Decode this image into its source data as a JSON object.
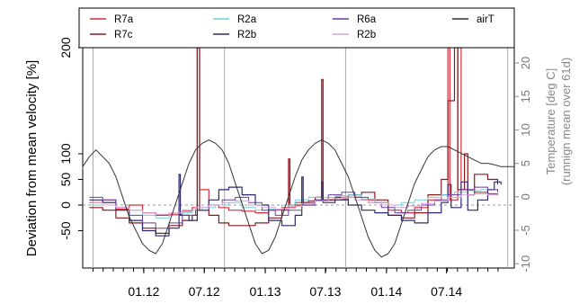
{
  "chart_data": {
    "type": "line",
    "ylabel": "Deviation from mean velocity [%]",
    "ylabel_right_lines": [
      "Temperature [deg C]",
      "(runnign mean over 61d)"
    ],
    "ylim": [
      -85,
      200
    ],
    "yticks": [
      -50,
      0,
      50,
      100,
      200
    ],
    "ylim_right": [
      -16,
      22
    ],
    "yticks_right": [
      -10,
      -5,
      0,
      5,
      10,
      15,
      20
    ],
    "xlim": [
      0,
      1300
    ],
    "xticks": [
      {
        "label": "01.12",
        "x": 184
      },
      {
        "label": "07.12",
        "x": 366
      },
      {
        "label": "01.13",
        "x": 550
      },
      {
        "label": "07.13",
        "x": 731
      },
      {
        "label": "01.14",
        "x": 915
      },
      {
        "label": "07.14",
        "x": 1096
      }
    ],
    "vlines": [
      31,
      427,
      792,
      1280
    ],
    "grid": false,
    "legend_placement": "top",
    "legend": [
      {
        "label": "R7a",
        "color": "#d62f3a"
      },
      {
        "label": "R2a",
        "color": "#6fd3dc"
      },
      {
        "label": "R6a",
        "color": "#6a3fa0"
      },
      {
        "label": "airT",
        "color": "#333333"
      },
      {
        "label": "R7c",
        "color": "#8b1a1f"
      },
      {
        "label": "R2b",
        "color": "#2b2a6e"
      },
      {
        "label": "R2b",
        "color": "#d9a0d8"
      }
    ],
    "series": [
      {
        "name": "R7a",
        "color": "#d62f3a",
        "axis": "left",
        "width": 1.2,
        "points": [
          [
            20,
            5
          ],
          [
            60,
            10
          ],
          [
            100,
            -8
          ],
          [
            140,
            0
          ],
          [
            180,
            -15
          ],
          [
            220,
            -20
          ],
          [
            260,
            -18
          ],
          [
            300,
            -12
          ],
          [
            330,
            -5
          ],
          [
            345,
            200
          ],
          [
            352,
            30
          ],
          [
            380,
            0
          ],
          [
            410,
            -5
          ],
          [
            440,
            -10
          ],
          [
            480,
            -12
          ],
          [
            520,
            -15
          ],
          [
            560,
            -10
          ],
          [
            600,
            -5
          ],
          [
            640,
            5
          ],
          [
            680,
            8
          ],
          [
            720,
            10
          ],
          [
            760,
            12
          ],
          [
            800,
            15
          ],
          [
            840,
            10
          ],
          [
            880,
            5
          ],
          [
            920,
            -10
          ],
          [
            960,
            -15
          ],
          [
            1000,
            -5
          ],
          [
            1040,
            10
          ],
          [
            1080,
            20
          ],
          [
            1100,
            200
          ],
          [
            1106,
            10
          ],
          [
            1130,
            200
          ],
          [
            1140,
            30
          ],
          [
            1180,
            25
          ],
          [
            1220,
            22
          ],
          [
            1250,
            20
          ]
        ]
      },
      {
        "name": "R7c",
        "color": "#8b1a1f",
        "axis": "left",
        "width": 1.2,
        "points": [
          [
            20,
            -5
          ],
          [
            60,
            -10
          ],
          [
            100,
            -25
          ],
          [
            140,
            -35
          ],
          [
            180,
            -45
          ],
          [
            220,
            -55
          ],
          [
            260,
            -40
          ],
          [
            300,
            -30
          ],
          [
            330,
            -20
          ],
          [
            345,
            200
          ],
          [
            352,
            -10
          ],
          [
            380,
            -20
          ],
          [
            410,
            -35
          ],
          [
            440,
            -40
          ],
          [
            480,
            -40
          ],
          [
            520,
            -35
          ],
          [
            560,
            -25
          ],
          [
            600,
            -10
          ],
          [
            620,
            90
          ],
          [
            624,
            0
          ],
          [
            660,
            5
          ],
          [
            700,
            15
          ],
          [
            720,
            170
          ],
          [
            724,
            10
          ],
          [
            760,
            15
          ],
          [
            800,
            20
          ],
          [
            840,
            25
          ],
          [
            880,
            10
          ],
          [
            920,
            -20
          ],
          [
            960,
            -25
          ],
          [
            1000,
            -15
          ],
          [
            1040,
            20
          ],
          [
            1080,
            50
          ],
          [
            1100,
            150
          ],
          [
            1120,
            200
          ],
          [
            1130,
            30
          ],
          [
            1150,
            100
          ],
          [
            1160,
            20
          ],
          [
            1180,
            60
          ],
          [
            1220,
            50
          ],
          [
            1250,
            40
          ]
        ]
      },
      {
        "name": "R2a",
        "color": "#6fd3dc",
        "axis": "left",
        "width": 1.0,
        "points": [
          [
            20,
            0
          ],
          [
            60,
            5
          ],
          [
            100,
            -5
          ],
          [
            140,
            -10
          ],
          [
            180,
            -20
          ],
          [
            220,
            -25
          ],
          [
            260,
            -20
          ],
          [
            300,
            -15
          ],
          [
            330,
            -10
          ],
          [
            360,
            -5
          ],
          [
            400,
            0
          ],
          [
            440,
            5
          ],
          [
            480,
            -5
          ],
          [
            520,
            -10
          ],
          [
            560,
            -8
          ],
          [
            600,
            0
          ],
          [
            640,
            10
          ],
          [
            680,
            15
          ],
          [
            720,
            15
          ],
          [
            760,
            18
          ],
          [
            800,
            20
          ],
          [
            840,
            12
          ],
          [
            880,
            5
          ],
          [
            920,
            0
          ],
          [
            960,
            5
          ],
          [
            1000,
            10
          ],
          [
            1040,
            15
          ],
          [
            1080,
            20
          ],
          [
            1120,
            25
          ],
          [
            1160,
            28
          ],
          [
            1200,
            30
          ],
          [
            1250,
            25
          ]
        ]
      },
      {
        "name": "R2b",
        "color": "#2b2a6e",
        "axis": "left",
        "width": 1.2,
        "points": [
          [
            20,
            10
          ],
          [
            60,
            5
          ],
          [
            100,
            -10
          ],
          [
            140,
            -30
          ],
          [
            180,
            -50
          ],
          [
            220,
            -60
          ],
          [
            260,
            -45
          ],
          [
            290,
            60
          ],
          [
            294,
            -20
          ],
          [
            320,
            -30
          ],
          [
            345,
            -10
          ],
          [
            380,
            10
          ],
          [
            410,
            30
          ],
          [
            440,
            35
          ],
          [
            480,
            20
          ],
          [
            520,
            0
          ],
          [
            560,
            -30
          ],
          [
            600,
            -40
          ],
          [
            640,
            -20
          ],
          [
            660,
            55
          ],
          [
            664,
            0
          ],
          [
            700,
            10
          ],
          [
            720,
            45
          ],
          [
            724,
            5
          ],
          [
            760,
            10
          ],
          [
            800,
            0
          ],
          [
            840,
            -10
          ],
          [
            880,
            -15
          ],
          [
            920,
            -20
          ],
          [
            960,
            -30
          ],
          [
            1000,
            -35
          ],
          [
            1040,
            -15
          ],
          [
            1080,
            5
          ],
          [
            1100,
            40
          ],
          [
            1110,
            -5
          ],
          [
            1140,
            45
          ],
          [
            1160,
            -10
          ],
          [
            1190,
            10
          ],
          [
            1220,
            30
          ],
          [
            1240,
            45
          ],
          [
            1260,
            40
          ]
        ]
      },
      {
        "name": "R6a",
        "color": "#6a3fa0",
        "axis": "left",
        "width": 1.0,
        "points": [
          [
            20,
            15
          ],
          [
            60,
            10
          ],
          [
            100,
            -5
          ],
          [
            140,
            -20
          ],
          [
            180,
            -35
          ],
          [
            220,
            -45
          ],
          [
            260,
            -35
          ],
          [
            300,
            -20
          ],
          [
            340,
            -10
          ],
          [
            380,
            0
          ],
          [
            420,
            10
          ],
          [
            460,
            15
          ],
          [
            500,
            5
          ],
          [
            540,
            -10
          ],
          [
            580,
            -20
          ],
          [
            620,
            -10
          ],
          [
            660,
            0
          ],
          [
            700,
            10
          ],
          [
            740,
            20
          ],
          [
            780,
            25
          ],
          [
            820,
            15
          ],
          [
            860,
            5
          ],
          [
            900,
            -5
          ],
          [
            940,
            -15
          ],
          [
            980,
            -10
          ],
          [
            1020,
            0
          ],
          [
            1060,
            10
          ],
          [
            1100,
            20
          ],
          [
            1140,
            30
          ],
          [
            1180,
            35
          ],
          [
            1220,
            30
          ],
          [
            1250,
            25
          ]
        ]
      },
      {
        "name": "R2b",
        "color": "#d9a0d8",
        "axis": "left",
        "width": 1.0,
        "points": [
          [
            20,
            5
          ],
          [
            60,
            0
          ],
          [
            100,
            -5
          ],
          [
            140,
            -10
          ],
          [
            180,
            -15
          ],
          [
            220,
            -18
          ],
          [
            260,
            -15
          ],
          [
            300,
            -10
          ],
          [
            340,
            -5
          ],
          [
            380,
            0
          ],
          [
            420,
            5
          ],
          [
            460,
            8
          ],
          [
            500,
            0
          ],
          [
            540,
            -5
          ],
          [
            580,
            -8
          ],
          [
            620,
            -3
          ],
          [
            660,
            3
          ],
          [
            700,
            8
          ],
          [
            740,
            12
          ],
          [
            780,
            15
          ],
          [
            820,
            10
          ],
          [
            860,
            5
          ],
          [
            900,
            0
          ],
          [
            940,
            -5
          ],
          [
            980,
            -2
          ],
          [
            1020,
            3
          ],
          [
            1060,
            8
          ],
          [
            1100,
            15
          ],
          [
            1140,
            20
          ],
          [
            1180,
            22
          ],
          [
            1220,
            20
          ],
          [
            1250,
            18
          ]
        ]
      },
      {
        "name": "airT",
        "color": "#333333",
        "axis": "right",
        "width": 1.0,
        "points": [
          [
            -10,
            4
          ],
          [
            0,
            4.5
          ],
          [
            20,
            6
          ],
          [
            40,
            7
          ],
          [
            60,
            6
          ],
          [
            80,
            5
          ],
          [
            100,
            3
          ],
          [
            120,
            0
          ],
          [
            140,
            -3
          ],
          [
            160,
            -5
          ],
          [
            180,
            -7
          ],
          [
            200,
            -8
          ],
          [
            220,
            -8.5
          ],
          [
            240,
            -7
          ],
          [
            260,
            -4
          ],
          [
            280,
            -1
          ],
          [
            300,
            2
          ],
          [
            320,
            5
          ],
          [
            340,
            7
          ],
          [
            360,
            8
          ],
          [
            380,
            8.5
          ],
          [
            400,
            8
          ],
          [
            420,
            7
          ],
          [
            440,
            5
          ],
          [
            460,
            2
          ],
          [
            480,
            -1
          ],
          [
            500,
            -4
          ],
          [
            520,
            -7
          ],
          [
            540,
            -8.5
          ],
          [
            560,
            -8
          ],
          [
            580,
            -6
          ],
          [
            600,
            -3
          ],
          [
            620,
            0
          ],
          [
            640,
            3
          ],
          [
            660,
            5.5
          ],
          [
            680,
            7
          ],
          [
            700,
            8
          ],
          [
            720,
            8.5
          ],
          [
            740,
            8
          ],
          [
            760,
            7
          ],
          [
            780,
            5
          ],
          [
            800,
            3
          ],
          [
            820,
            0
          ],
          [
            840,
            -3
          ],
          [
            860,
            -6
          ],
          [
            880,
            -8
          ],
          [
            900,
            -9
          ],
          [
            920,
            -8.5
          ],
          [
            940,
            -7
          ],
          [
            960,
            -4
          ],
          [
            980,
            -1
          ],
          [
            1000,
            2
          ],
          [
            1020,
            4
          ],
          [
            1040,
            6
          ],
          [
            1060,
            7
          ],
          [
            1080,
            7.5
          ],
          [
            1100,
            7.5
          ],
          [
            1120,
            7
          ],
          [
            1140,
            6.5
          ],
          [
            1160,
            6
          ],
          [
            1180,
            5.5
          ],
          [
            1200,
            5
          ],
          [
            1220,
            5
          ],
          [
            1240,
            4.8
          ],
          [
            1260,
            4.5
          ],
          [
            1280,
            4.5
          ],
          [
            1300,
            4.5
          ]
        ]
      }
    ]
  }
}
